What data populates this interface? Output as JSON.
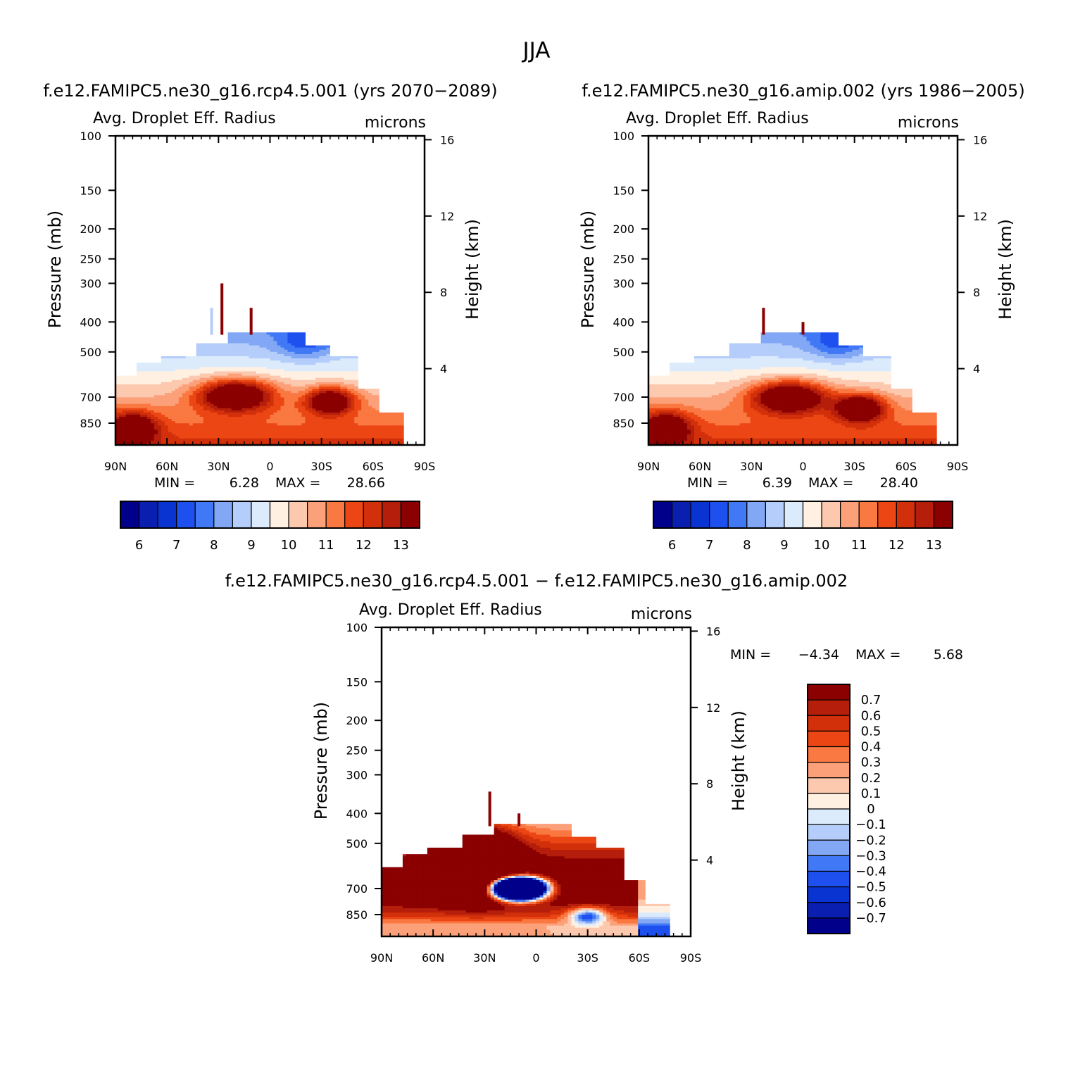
{
  "figure_title": "JJA",
  "chart_data": [
    {
      "type": "contour",
      "id": "p1",
      "title": "f.e12.FAMIPC5.ne30_g16.rcp4.5.001 (yrs 2070-2089)",
      "left_header": "Avg. Droplet Eff. Radius",
      "right_header": "microns",
      "ylabel": "Pressure (mb)",
      "ylabel2": "Height (km)",
      "x_ticks": [
        "90N",
        "60N",
        "30N",
        "0",
        "30S",
        "60S",
        "90S"
      ],
      "y_ticks": [
        {
          "p": 100,
          "label": "100"
        },
        {
          "p": 150,
          "label": "150"
        },
        {
          "p": 200,
          "label": "200"
        },
        {
          "p": 250,
          "label": "250"
        },
        {
          "p": 300,
          "label": "300"
        },
        {
          "p": 400,
          "label": "400"
        },
        {
          "p": 500,
          "label": "500"
        },
        {
          "p": 700,
          "label": "700"
        },
        {
          "p": 850,
          "label": "850"
        }
      ],
      "y2_ticks": [
        {
          "km": 16,
          "label": "16"
        },
        {
          "km": 12,
          "label": "12"
        },
        {
          "km": 8,
          "label": "8"
        },
        {
          "km": 4,
          "label": "4"
        }
      ],
      "min_label": "MIN =",
      "min_value": "6.28",
      "max_label": "MAX =",
      "max_value": "28.66",
      "colorbar": {
        "orientation": "horizontal",
        "colors": [
          "#00008b",
          "#0a1fb0",
          "#0a34d2",
          "#1e50f0",
          "#4178f5",
          "#82a8f5",
          "#b4cdfa",
          "#dcebfc",
          "#fff0e2",
          "#fcc8ae",
          "#fca07a",
          "#fa7841",
          "#eb4614",
          "#d2300a",
          "#b41e0a",
          "#8b0000"
        ],
        "labels": [
          "6",
          "7",
          "8",
          "9",
          "10",
          "11",
          "12",
          "13"
        ]
      },
      "features": [
        {
          "lat": 20,
          "p": 690,
          "value": 13.5
        },
        {
          "lat": -35,
          "p": 720,
          "value": 13.5
        },
        {
          "lat": 78,
          "p": 820,
          "value": 13
        }
      ]
    },
    {
      "type": "contour",
      "id": "p2",
      "title": "f.e12.FAMIPC5.ne30_g16.amip.002 (yrs 1986-2005)",
      "left_header": "Avg. Droplet Eff. Radius",
      "right_header": "microns",
      "ylabel": "Pressure (mb)",
      "ylabel2": "Height (km)",
      "x_ticks": [
        "90N",
        "60N",
        "30N",
        "0",
        "30S",
        "60S",
        "90S"
      ],
      "y_ticks": [
        {
          "p": 100,
          "label": "100"
        },
        {
          "p": 150,
          "label": "150"
        },
        {
          "p": 200,
          "label": "200"
        },
        {
          "p": 250,
          "label": "250"
        },
        {
          "p": 300,
          "label": "300"
        },
        {
          "p": 400,
          "label": "400"
        },
        {
          "p": 500,
          "label": "500"
        },
        {
          "p": 700,
          "label": "700"
        },
        {
          "p": 850,
          "label": "850"
        }
      ],
      "y2_ticks": [
        {
          "km": 16,
          "label": "16"
        },
        {
          "km": 12,
          "label": "12"
        },
        {
          "km": 8,
          "label": "8"
        },
        {
          "km": 4,
          "label": "4"
        }
      ],
      "min_label": "MIN =",
      "min_value": "6.39",
      "max_label": "MAX =",
      "max_value": "28.40",
      "colorbar": {
        "orientation": "horizontal",
        "colors": [
          "#00008b",
          "#0a1fb0",
          "#0a34d2",
          "#1e50f0",
          "#4178f5",
          "#82a8f5",
          "#b4cdfa",
          "#dcebfc",
          "#fff0e2",
          "#fcc8ae",
          "#fca07a",
          "#fa7841",
          "#eb4614",
          "#d2300a",
          "#b41e0a",
          "#8b0000"
        ],
        "labels": [
          "6",
          "7",
          "8",
          "9",
          "10",
          "11",
          "12",
          "13"
        ]
      },
      "features": [
        {
          "lat": 8,
          "p": 700,
          "value": 13.5
        },
        {
          "lat": -33,
          "p": 750,
          "value": 13.5
        },
        {
          "lat": 78,
          "p": 820,
          "value": 13
        }
      ]
    },
    {
      "type": "contour",
      "id": "p3",
      "title": "f.e12.FAMIPC5.ne30_g16.rcp4.5.001 - f.e12.FAMIPC5.ne30_g16.amip.002",
      "left_header": "Avg. Droplet Eff. Radius",
      "right_header": "microns",
      "ylabel": "Pressure (mb)",
      "ylabel2": "Height (km)",
      "x_ticks": [
        "90N",
        "60N",
        "30N",
        "0",
        "30S",
        "60S",
        "90S"
      ],
      "y_ticks": [
        {
          "p": 100,
          "label": "100"
        },
        {
          "p": 150,
          "label": "150"
        },
        {
          "p": 200,
          "label": "200"
        },
        {
          "p": 250,
          "label": "250"
        },
        {
          "p": 300,
          "label": "300"
        },
        {
          "p": 400,
          "label": "400"
        },
        {
          "p": 500,
          "label": "500"
        },
        {
          "p": 700,
          "label": "700"
        },
        {
          "p": 850,
          "label": "850"
        }
      ],
      "y2_ticks": [
        {
          "km": 16,
          "label": "16"
        },
        {
          "km": 12,
          "label": "12"
        },
        {
          "km": 8,
          "label": "8"
        },
        {
          "km": 4,
          "label": "4"
        }
      ],
      "min_label": "MIN =",
      "min_value": "-4.34",
      "max_label": "MAX =",
      "max_value": "5.68",
      "colorbar": {
        "orientation": "vertical",
        "colors": [
          "#00008b",
          "#0a1fb0",
          "#0a34d2",
          "#1e50f0",
          "#4178f5",
          "#82a8f5",
          "#b4cdfa",
          "#dcebfc",
          "#fff0e2",
          "#fcc8ae",
          "#fca07a",
          "#fa7841",
          "#eb4614",
          "#d2300a",
          "#b41e0a",
          "#8b0000"
        ],
        "labels": [
          "0.7",
          "0.6",
          "0.5",
          "0.4",
          "0.3",
          "0.2",
          "0.1",
          "0",
          "-0.1",
          "-0.2",
          "-0.3",
          "-0.4",
          "-0.5",
          "-0.6",
          "-0.7"
        ]
      },
      "features": [
        {
          "lat": 10,
          "p": 690,
          "value": -4.34
        },
        {
          "lat": 30,
          "p": 520,
          "value": 0.8
        }
      ]
    }
  ]
}
